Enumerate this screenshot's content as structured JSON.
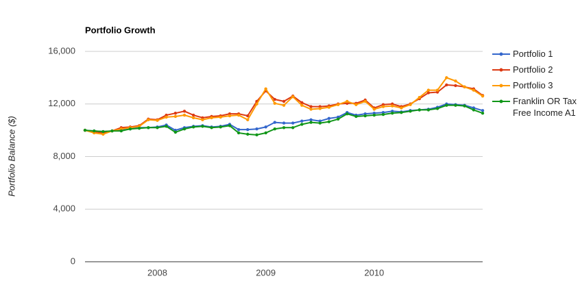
{
  "chart_data": {
    "type": "line",
    "title": "Portfolio Growth",
    "y_label": "Portfolio Balance ($)",
    "x": [
      2007.333,
      2007.417,
      2007.5,
      2007.583,
      2007.667,
      2007.75,
      2007.833,
      2007.917,
      2008,
      2008.083,
      2008.167,
      2008.25,
      2008.333,
      2008.417,
      2008.5,
      2008.583,
      2008.667,
      2008.75,
      2008.833,
      2008.917,
      2009,
      2009.083,
      2009.167,
      2009.25,
      2009.333,
      2009.417,
      2009.5,
      2009.583,
      2009.667,
      2009.75,
      2009.833,
      2009.917,
      2010,
      2010.083,
      2010.167,
      2010.25,
      2010.333,
      2010.417,
      2010.5,
      2010.583,
      2010.667,
      2010.75,
      2010.833,
      2010.917,
      2011
    ],
    "xlim": [
      2007.333,
      2011
    ],
    "xticks": [
      2008,
      2009,
      2010
    ],
    "ylim": [
      0,
      16000
    ],
    "yticks": [
      0,
      {
        "value": 4000,
        "label": "4,000"
      },
      {
        "value": 8000,
        "label": "8,000"
      },
      {
        "value": 12000,
        "label": "12,000"
      },
      {
        "value": 16000,
        "label": "16,000"
      }
    ],
    "grid": true,
    "legend": "right",
    "series": [
      {
        "name": "Portfolio 1",
        "color": "#3366cc",
        "values": [
          10000,
          9950,
          9900,
          9950,
          10000,
          10100,
          10200,
          10200,
          10250,
          10400,
          10000,
          10200,
          10300,
          10350,
          10250,
          10300,
          10450,
          10050,
          10050,
          10100,
          10250,
          10600,
          10550,
          10550,
          10700,
          10800,
          10700,
          10900,
          11000,
          11350,
          11150,
          11250,
          11300,
          11350,
          11450,
          11400,
          11500,
          11550,
          11600,
          11750,
          12000,
          11950,
          11900,
          11700,
          11500
        ]
      },
      {
        "name": "Portfolio 2",
        "color": "#dc3912",
        "values": [
          10000,
          9900,
          9800,
          9950,
          10200,
          10250,
          10350,
          10850,
          10800,
          11150,
          11300,
          11450,
          11150,
          10950,
          11050,
          11100,
          11250,
          11250,
          11100,
          12200,
          13000,
          12350,
          12200,
          12600,
          12100,
          11800,
          11800,
          11850,
          12000,
          12050,
          12050,
          12300,
          11700,
          11950,
          12000,
          11800,
          12000,
          12400,
          12850,
          12900,
          13450,
          13400,
          13300,
          13150,
          12650
        ]
      },
      {
        "name": "Portfolio 3",
        "color": "#ff9900",
        "values": [
          10000,
          9800,
          9700,
          9950,
          10100,
          10200,
          10300,
          10800,
          10750,
          11000,
          11050,
          11150,
          10950,
          10800,
          10950,
          11000,
          11100,
          11150,
          10800,
          12000,
          13150,
          12050,
          11900,
          12550,
          11900,
          11600,
          11650,
          11750,
          11950,
          12200,
          11950,
          12200,
          11600,
          11800,
          11850,
          11700,
          11950,
          12500,
          13050,
          13050,
          14000,
          13750,
          13300,
          13050,
          12600
        ]
      },
      {
        "name": "Franklin OR Tax Free Income A1",
        "color": "#109618",
        "values": [
          10000,
          9950,
          9900,
          9950,
          9950,
          10100,
          10150,
          10200,
          10200,
          10300,
          9850,
          10100,
          10250,
          10300,
          10200,
          10250,
          10350,
          9800,
          9700,
          9650,
          9800,
          10100,
          10200,
          10200,
          10450,
          10600,
          10550,
          10650,
          10850,
          11250,
          11050,
          11100,
          11150,
          11200,
          11300,
          11350,
          11450,
          11550,
          11550,
          11650,
          11900,
          11900,
          11850,
          11550,
          11300
        ]
      }
    ]
  }
}
